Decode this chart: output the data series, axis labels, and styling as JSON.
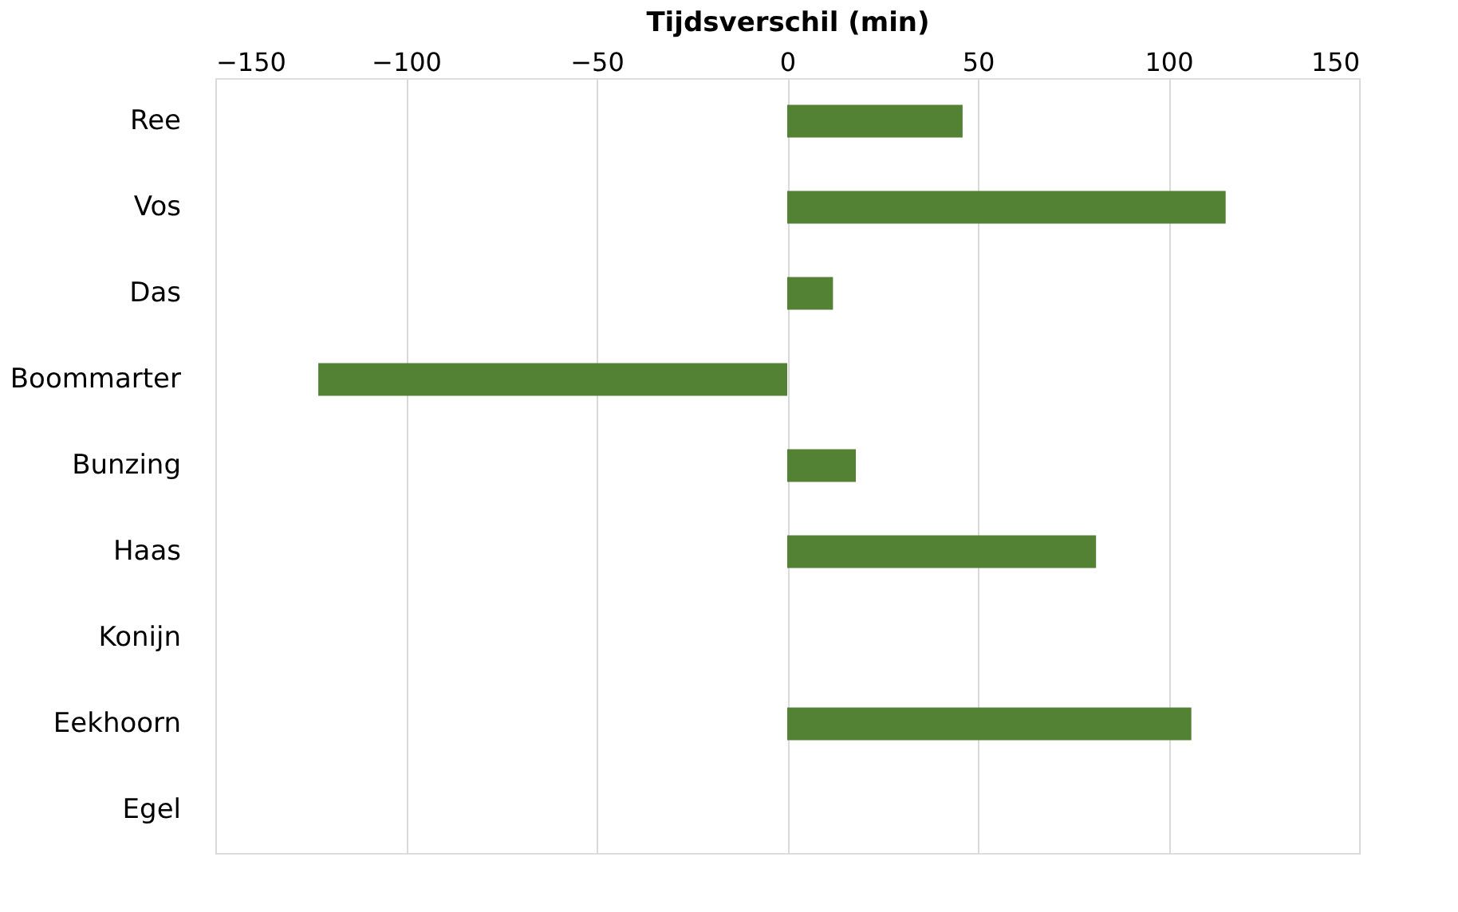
{
  "chart_data": {
    "type": "bar",
    "orientation": "horizontal",
    "xlabel": "Tijdsverschil (min)",
    "categories": [
      "Ree",
      "Vos",
      "Das",
      "Boommarter",
      "Bunzing",
      "Haas",
      "Konijn",
      "Eekhoorn",
      "Egel"
    ],
    "values": [
      46,
      115,
      12,
      -123,
      18,
      81,
      null,
      106,
      null
    ],
    "color": "#548235",
    "xlim": [
      -150,
      150
    ],
    "xticks": [
      -150,
      -100,
      -50,
      0,
      50,
      100,
      150
    ],
    "grid": "x"
  }
}
